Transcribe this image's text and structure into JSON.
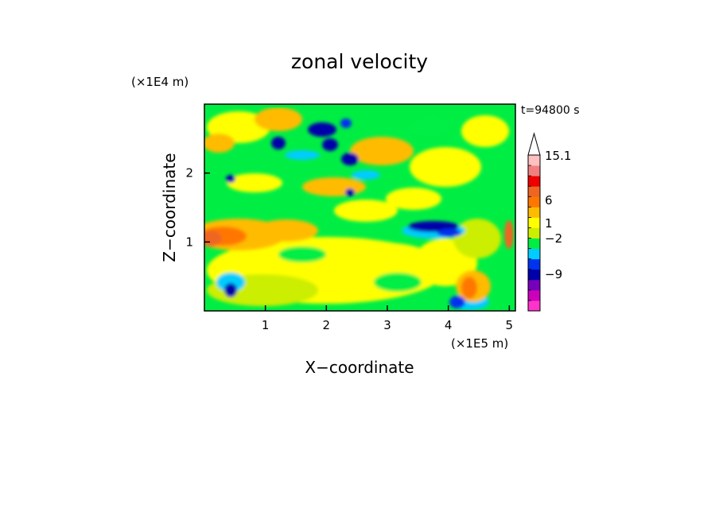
{
  "chart_data": {
    "type": "heatmap",
    "title": "zonal velocity",
    "xlabel": "X−coordinate",
    "ylabel": "Z−coordinate",
    "x_unit": "(×1E5 m)",
    "y_unit": "(×1E4 m)",
    "time_label": "t=94800 s",
    "xlim": [
      0,
      5.1
    ],
    "ylim": [
      0,
      3.0
    ],
    "x_ticks": [
      {
        "value": 1,
        "label": "1"
      },
      {
        "value": 2,
        "label": "2"
      },
      {
        "value": 3,
        "label": "3"
      },
      {
        "value": 4,
        "label": "4"
      },
      {
        "value": 5,
        "label": "5"
      }
    ],
    "y_ticks": [
      {
        "value": 1,
        "label": "1"
      },
      {
        "value": 2,
        "label": "2"
      }
    ],
    "colorbar": {
      "levels": [
        {
          "color": "#ff33cc"
        },
        {
          "color": "#cc00bb"
        },
        {
          "color": "#7700bb"
        },
        {
          "color": "#0000aa"
        },
        {
          "color": "#0033ee"
        },
        {
          "color": "#00ccff"
        },
        {
          "color": "#00ee44"
        },
        {
          "color": "#ccee00"
        },
        {
          "color": "#ffff00"
        },
        {
          "color": "#ffbb00"
        },
        {
          "color": "#ff7700"
        },
        {
          "color": "#ee6622"
        },
        {
          "color": "#ee0000"
        },
        {
          "color": "#f08080"
        },
        {
          "color": "#ffc0c0"
        }
      ],
      "labels": [
        {
          "text": "15.1",
          "value": 15.1
        },
        {
          "text": "6",
          "value": 6
        },
        {
          "text": "1",
          "value": 1
        },
        {
          "text": "−2",
          "value": -2
        },
        {
          "text": "−9",
          "value": -9
        }
      ]
    },
    "colors": {
      "frame": "#000000"
    }
  }
}
